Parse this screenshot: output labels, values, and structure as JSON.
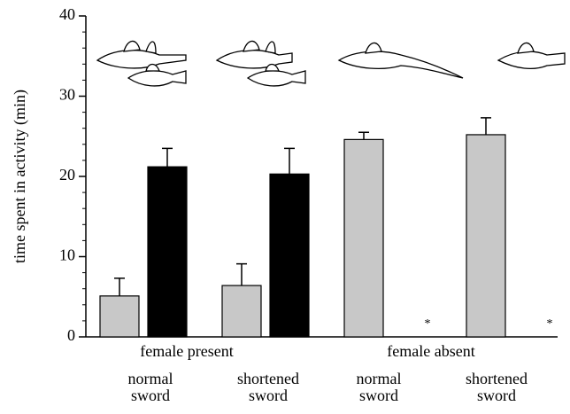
{
  "chart_data": {
    "type": "bar",
    "y_label": "time spent in activity (min)",
    "categories": [
      "normal\nsword",
      "shortened\nsword",
      "normal\nsword",
      "shortened\nsword"
    ],
    "group_labels": [
      "female present",
      "female absent"
    ],
    "series": [
      {
        "color": "#c8c8c8",
        "values": [
          5.1,
          6.4,
          24.6,
          25.2
        ],
        "errors": [
          2.2,
          2.7,
          0.9,
          2.1
        ]
      },
      {
        "color": "#000000",
        "values": [
          21.2,
          20.3,
          null,
          null
        ],
        "errors": [
          2.3,
          3.2,
          null,
          null
        ]
      }
    ],
    "annotations": [
      "*",
      "*"
    ],
    "ylim": [
      0,
      40
    ],
    "yticks": [
      0,
      10,
      20,
      30,
      40
    ],
    "minor_yticks": [
      2,
      4,
      6,
      8,
      12,
      14,
      16,
      18,
      22,
      24,
      26,
      28,
      32,
      34,
      36,
      38
    ]
  }
}
